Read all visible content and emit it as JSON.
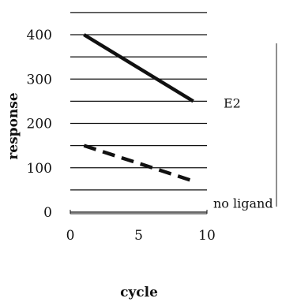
{
  "chart_data": {
    "type": "line",
    "title": "",
    "xlabel": "cycle",
    "ylabel": "response",
    "xlim": [
      0,
      10
    ],
    "ylim": [
      0,
      400
    ],
    "x_ticks": [
      "0",
      "5",
      "10"
    ],
    "y_ticks": [
      "0",
      "100",
      "200",
      "300",
      "400"
    ],
    "gridlines_y": [
      0,
      50,
      100,
      150,
      200,
      250,
      300,
      350,
      400,
      450
    ],
    "grid": "horizontal",
    "series": [
      {
        "name": "E2",
        "x": [
          1,
          9
        ],
        "y": [
          400,
          250
        ],
        "style": "solid",
        "color": "#111111"
      },
      {
        "name": "no ligand",
        "x": [
          1,
          9
        ],
        "y": [
          150,
          70
        ],
        "style": "dashed",
        "color": "#111111"
      }
    ]
  }
}
